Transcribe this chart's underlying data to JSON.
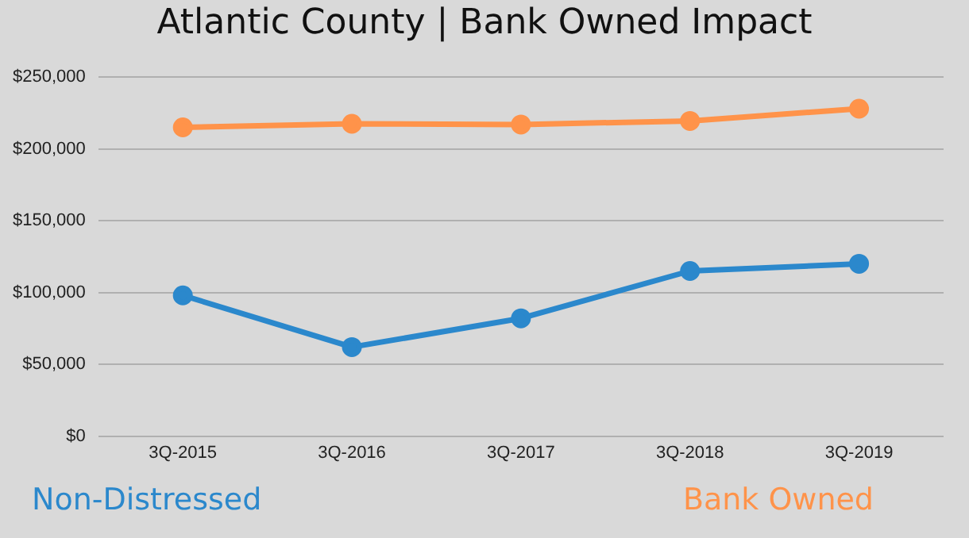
{
  "chart_data": {
    "type": "line",
    "title": "Atlantic County | Bank Owned Impact",
    "categories": [
      "3Q-2015",
      "3Q-2016",
      "3Q-2017",
      "3Q-2018",
      "3Q-2019"
    ],
    "series": [
      {
        "name": "Non-Distressed",
        "color": "#2b88cc",
        "values": [
          98000,
          62000,
          82000,
          115000,
          120000
        ]
      },
      {
        "name": "Bank Owned",
        "color": "#ff934a",
        "values": [
          215000,
          217500,
          217000,
          219500,
          228000
        ]
      }
    ],
    "ylim": [
      0,
      250000
    ],
    "yticks": [
      {
        "value": 0,
        "label": "$0"
      },
      {
        "value": 50000,
        "label": "$50,000"
      },
      {
        "value": 100000,
        "label": "$100,000"
      },
      {
        "value": 150000,
        "label": "$150,000"
      },
      {
        "value": 200000,
        "label": "$200,000"
      },
      {
        "value": 250000,
        "label": "$250,000"
      }
    ],
    "grid": "y",
    "marker": "circle",
    "line_style": "solid"
  }
}
